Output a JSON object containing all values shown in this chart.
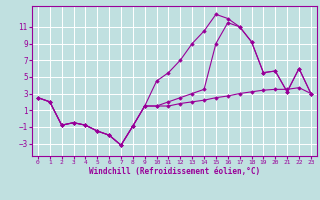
{
  "line1_x": [
    0,
    1,
    2,
    3,
    4,
    5,
    6,
    7,
    8,
    9,
    10,
    11,
    12,
    13,
    14,
    15,
    16,
    17,
    18,
    19,
    20,
    21,
    22,
    23
  ],
  "line1_y": [
    2.5,
    2.0,
    -0.8,
    -0.5,
    -0.8,
    -1.5,
    -2.0,
    -3.2,
    -0.9,
    1.5,
    4.5,
    5.5,
    7.0,
    9.0,
    10.5,
    12.5,
    12.0,
    11.0,
    9.2,
    5.5,
    5.7,
    3.2,
    6.0,
    3.0
  ],
  "line2_x": [
    0,
    1,
    2,
    3,
    4,
    5,
    6,
    7,
    8,
    9,
    10,
    11,
    12,
    13,
    14,
    15,
    16,
    17,
    18,
    19,
    20,
    21,
    22,
    23
  ],
  "line2_y": [
    2.5,
    2.0,
    -0.8,
    -0.5,
    -0.8,
    -1.5,
    -2.0,
    -3.2,
    -0.9,
    1.5,
    1.5,
    1.5,
    1.8,
    2.0,
    2.2,
    2.5,
    2.7,
    3.0,
    3.2,
    3.4,
    3.5,
    3.5,
    3.7,
    3.0
  ],
  "line3_x": [
    0,
    1,
    2,
    3,
    4,
    5,
    6,
    7,
    8,
    9,
    10,
    11,
    12,
    13,
    14,
    15,
    16,
    17,
    18,
    19,
    20,
    21,
    22,
    23
  ],
  "line3_y": [
    2.5,
    2.0,
    -0.8,
    -0.5,
    -0.8,
    -1.5,
    -2.0,
    -3.2,
    -0.9,
    1.5,
    1.5,
    2.0,
    2.5,
    3.0,
    3.5,
    9.0,
    11.5,
    11.0,
    9.2,
    5.5,
    5.7,
    3.2,
    6.0,
    3.0
  ],
  "line_color": "#990099",
  "bg_color": "#c0e0e0",
  "grid_color": "#ffffff",
  "xlabel": "Windchill (Refroidissement éolien,°C)",
  "yticks": [
    -3,
    -1,
    1,
    3,
    5,
    7,
    9,
    11
  ],
  "xticks": [
    0,
    1,
    2,
    3,
    4,
    5,
    6,
    7,
    8,
    9,
    10,
    11,
    12,
    13,
    14,
    15,
    16,
    17,
    18,
    19,
    20,
    21,
    22,
    23
  ],
  "xlim": [
    -0.5,
    23.5
  ],
  "ylim": [
    -4.5,
    13.5
  ]
}
